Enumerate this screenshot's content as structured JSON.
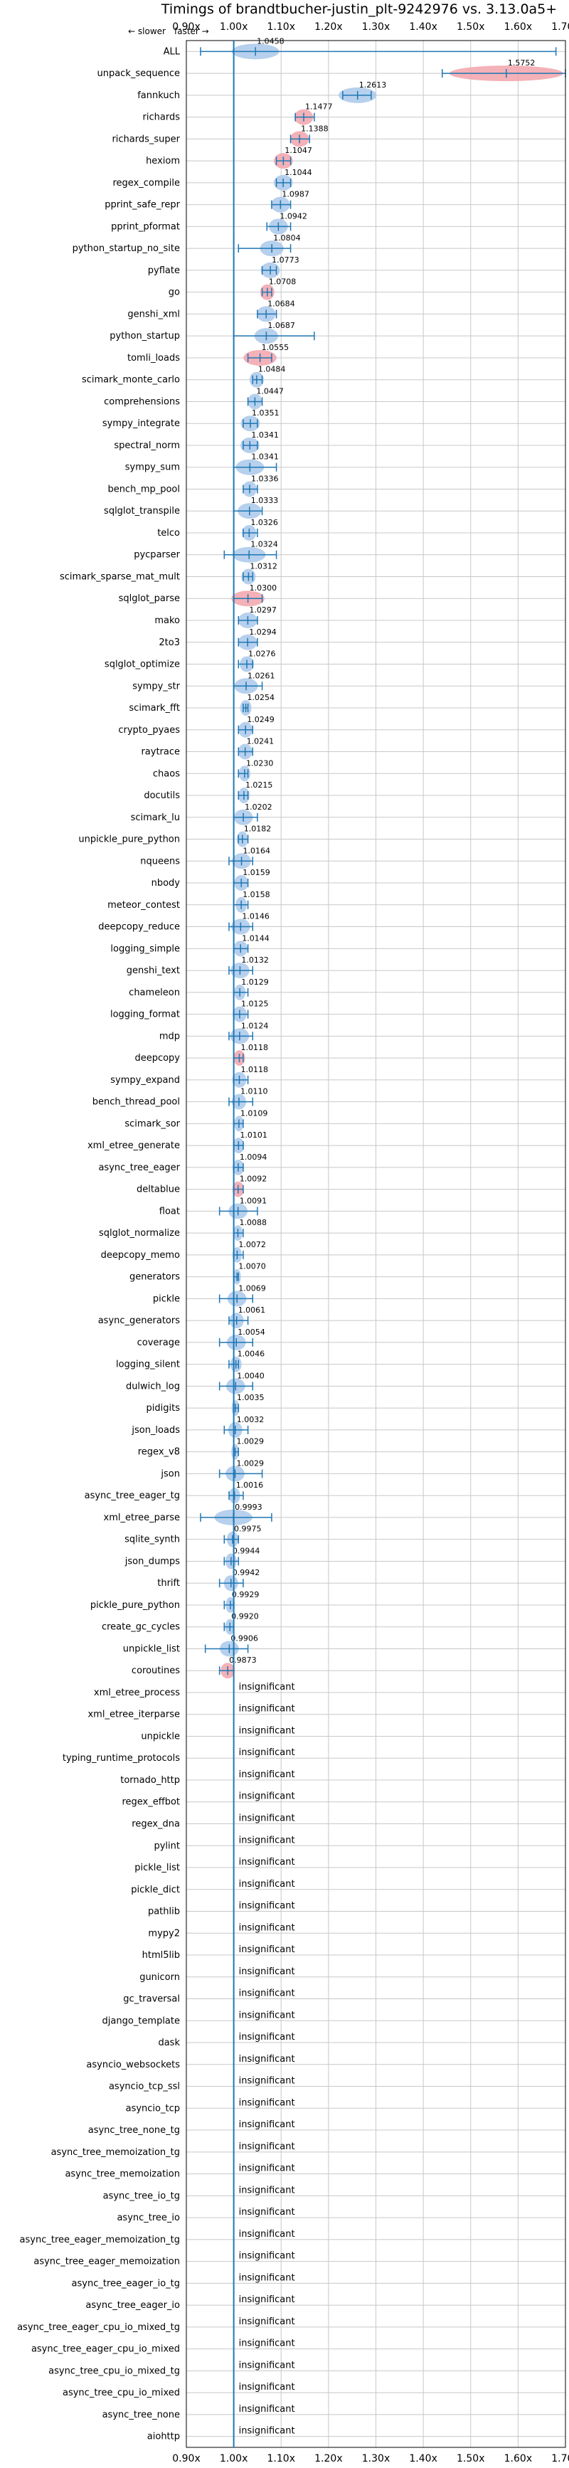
{
  "chart_data": {
    "type": "violin",
    "title": "Timings of brandtbucher-justin_plt-9242976 vs. 3.13.0a5+",
    "legend": {
      "slower": "← slower",
      "faster": "faster →"
    },
    "xlim": [
      0.9,
      1.7
    ],
    "xticks": [
      "0.90x",
      "1.00x",
      "1.10x",
      "1.20x",
      "1.30x",
      "1.40x",
      "1.50x",
      "1.60x",
      "1.70x"
    ],
    "grid": true,
    "colors": {
      "faster": "#a9c8ea",
      "slower": "#f2a3aa",
      "line": "#1f77b4",
      "grid": "#c8c8c8"
    },
    "rows": [
      {
        "name": "ALL",
        "mean": 1.0458,
        "label": "1.0458",
        "lo": 0.93,
        "hi": 1.68,
        "w": 0.05,
        "color": "faster"
      },
      {
        "name": "unpack_sequence",
        "mean": 1.5752,
        "label": "1.5752",
        "lo": 1.44,
        "hi": 1.7,
        "w": 0.12,
        "color": "slower"
      },
      {
        "name": "fannkuch",
        "mean": 1.2613,
        "label": "1.2613",
        "lo": 1.23,
        "hi": 1.29,
        "w": 0.04,
        "color": "faster"
      },
      {
        "name": "richards",
        "mean": 1.1477,
        "label": "1.1477",
        "lo": 1.13,
        "hi": 1.17,
        "w": 0.02,
        "color": "slower"
      },
      {
        "name": "richards_super",
        "mean": 1.1388,
        "label": "1.1388",
        "lo": 1.12,
        "hi": 1.16,
        "w": 0.02,
        "color": "slower"
      },
      {
        "name": "hexiom",
        "mean": 1.1047,
        "label": "1.1047",
        "lo": 1.09,
        "hi": 1.12,
        "w": 0.02,
        "color": "slower"
      },
      {
        "name": "regex_compile",
        "mean": 1.1044,
        "label": "1.1044",
        "lo": 1.09,
        "hi": 1.12,
        "w": 0.02,
        "color": "faster"
      },
      {
        "name": "pprint_safe_repr",
        "mean": 1.0987,
        "label": "1.0987",
        "lo": 1.08,
        "hi": 1.12,
        "w": 0.02,
        "color": "faster"
      },
      {
        "name": "pprint_pformat",
        "mean": 1.0942,
        "label": "1.0942",
        "lo": 1.07,
        "hi": 1.12,
        "w": 0.02,
        "color": "faster"
      },
      {
        "name": "python_startup_no_site",
        "mean": 1.0804,
        "label": "1.0804",
        "lo": 1.01,
        "hi": 1.12,
        "w": 0.025,
        "color": "faster"
      },
      {
        "name": "pyflate",
        "mean": 1.0773,
        "label": "1.0773",
        "lo": 1.06,
        "hi": 1.09,
        "w": 0.02,
        "color": "faster"
      },
      {
        "name": "go",
        "mean": 1.0708,
        "label": "1.0708",
        "lo": 1.06,
        "hi": 1.08,
        "w": 0.015,
        "color": "slower"
      },
      {
        "name": "genshi_xml",
        "mean": 1.0684,
        "label": "1.0684",
        "lo": 1.05,
        "hi": 1.09,
        "w": 0.02,
        "color": "faster"
      },
      {
        "name": "python_startup",
        "mean": 1.0687,
        "label": "1.0687",
        "lo": 1.0,
        "hi": 1.17,
        "w": 0.025,
        "color": "faster"
      },
      {
        "name": "tomli_loads",
        "mean": 1.0555,
        "label": "1.0555",
        "lo": 1.03,
        "hi": 1.08,
        "w": 0.035,
        "color": "slower"
      },
      {
        "name": "scimark_monte_carlo",
        "mean": 1.0484,
        "label": "1.0484",
        "lo": 1.04,
        "hi": 1.06,
        "w": 0.015,
        "color": "faster"
      },
      {
        "name": "comprehensions",
        "mean": 1.0447,
        "label": "1.0447",
        "lo": 1.03,
        "hi": 1.06,
        "w": 0.015,
        "color": "faster"
      },
      {
        "name": "sympy_integrate",
        "mean": 1.0351,
        "label": "1.0351",
        "lo": 1.02,
        "hi": 1.05,
        "w": 0.02,
        "color": "faster"
      },
      {
        "name": "spectral_norm",
        "mean": 1.0341,
        "label": "1.0341",
        "lo": 1.02,
        "hi": 1.05,
        "w": 0.02,
        "color": "faster"
      },
      {
        "name": "sympy_sum",
        "mean": 1.0341,
        "label": "1.0341",
        "lo": 1.0,
        "hi": 1.09,
        "w": 0.03,
        "color": "faster"
      },
      {
        "name": "bench_mp_pool",
        "mean": 1.0336,
        "label": "1.0336",
        "lo": 1.02,
        "hi": 1.05,
        "w": 0.015,
        "color": "faster"
      },
      {
        "name": "sqlglot_transpile",
        "mean": 1.0333,
        "label": "1.0333",
        "lo": 1.0,
        "hi": 1.06,
        "w": 0.025,
        "color": "faster"
      },
      {
        "name": "telco",
        "mean": 1.0326,
        "label": "1.0326",
        "lo": 1.02,
        "hi": 1.05,
        "w": 0.015,
        "color": "faster"
      },
      {
        "name": "pycparser",
        "mean": 1.0324,
        "label": "1.0324",
        "lo": 0.98,
        "hi": 1.09,
        "w": 0.035,
        "color": "faster"
      },
      {
        "name": "scimark_sparse_mat_mult",
        "mean": 1.0312,
        "label": "1.0312",
        "lo": 1.02,
        "hi": 1.04,
        "w": 0.015,
        "color": "faster"
      },
      {
        "name": "sqlglot_parse",
        "mean": 1.03,
        "label": "1.0300",
        "lo": 1.0,
        "hi": 1.06,
        "w": 0.035,
        "color": "slower"
      },
      {
        "name": "mako",
        "mean": 1.0297,
        "label": "1.0297",
        "lo": 1.01,
        "hi": 1.05,
        "w": 0.02,
        "color": "faster"
      },
      {
        "name": "2to3",
        "mean": 1.0294,
        "label": "1.0294",
        "lo": 1.01,
        "hi": 1.05,
        "w": 0.02,
        "color": "faster"
      },
      {
        "name": "sqlglot_optimize",
        "mean": 1.0276,
        "label": "1.0276",
        "lo": 1.01,
        "hi": 1.04,
        "w": 0.015,
        "color": "faster"
      },
      {
        "name": "sympy_str",
        "mean": 1.0261,
        "label": "1.0261",
        "lo": 1.0,
        "hi": 1.06,
        "w": 0.025,
        "color": "faster"
      },
      {
        "name": "scimark_fft",
        "mean": 1.0254,
        "label": "1.0254",
        "lo": 1.02,
        "hi": 1.03,
        "w": 0.012,
        "color": "faster"
      },
      {
        "name": "crypto_pyaes",
        "mean": 1.0249,
        "label": "1.0249",
        "lo": 1.01,
        "hi": 1.04,
        "w": 0.015,
        "color": "faster"
      },
      {
        "name": "raytrace",
        "mean": 1.0241,
        "label": "1.0241",
        "lo": 1.01,
        "hi": 1.04,
        "w": 0.015,
        "color": "faster"
      },
      {
        "name": "chaos",
        "mean": 1.023,
        "label": "1.0230",
        "lo": 1.01,
        "hi": 1.03,
        "w": 0.012,
        "color": "faster"
      },
      {
        "name": "docutils",
        "mean": 1.0215,
        "label": "1.0215",
        "lo": 1.01,
        "hi": 1.03,
        "w": 0.012,
        "color": "faster"
      },
      {
        "name": "scimark_lu",
        "mean": 1.0202,
        "label": "1.0202",
        "lo": 1.0,
        "hi": 1.05,
        "w": 0.02,
        "color": "faster"
      },
      {
        "name": "unpickle_pure_python",
        "mean": 1.0182,
        "label": "1.0182",
        "lo": 1.01,
        "hi": 1.03,
        "w": 0.012,
        "color": "faster"
      },
      {
        "name": "nqueens",
        "mean": 1.0164,
        "label": "1.0164",
        "lo": 0.99,
        "hi": 1.04,
        "w": 0.02,
        "color": "faster"
      },
      {
        "name": "nbody",
        "mean": 1.0159,
        "label": "1.0159",
        "lo": 1.0,
        "hi": 1.03,
        "w": 0.015,
        "color": "faster"
      },
      {
        "name": "meteor_contest",
        "mean": 1.0158,
        "label": "1.0158",
        "lo": 1.0,
        "hi": 1.03,
        "w": 0.012,
        "color": "faster"
      },
      {
        "name": "deepcopy_reduce",
        "mean": 1.0146,
        "label": "1.0146",
        "lo": 0.99,
        "hi": 1.04,
        "w": 0.02,
        "color": "faster"
      },
      {
        "name": "logging_simple",
        "mean": 1.0144,
        "label": "1.0144",
        "lo": 1.0,
        "hi": 1.03,
        "w": 0.015,
        "color": "faster"
      },
      {
        "name": "genshi_text",
        "mean": 1.0132,
        "label": "1.0132",
        "lo": 0.99,
        "hi": 1.04,
        "w": 0.02,
        "color": "faster"
      },
      {
        "name": "chameleon",
        "mean": 1.0129,
        "label": "1.0129",
        "lo": 1.0,
        "hi": 1.03,
        "w": 0.012,
        "color": "faster"
      },
      {
        "name": "logging_format",
        "mean": 1.0125,
        "label": "1.0125",
        "lo": 1.0,
        "hi": 1.03,
        "w": 0.015,
        "color": "faster"
      },
      {
        "name": "mdp",
        "mean": 1.0124,
        "label": "1.0124",
        "lo": 0.99,
        "hi": 1.04,
        "w": 0.02,
        "color": "faster"
      },
      {
        "name": "deepcopy",
        "mean": 1.0118,
        "label": "1.0118",
        "lo": 1.0,
        "hi": 1.02,
        "w": 0.012,
        "color": "slower"
      },
      {
        "name": "sympy_expand",
        "mean": 1.0118,
        "label": "1.0118",
        "lo": 1.0,
        "hi": 1.03,
        "w": 0.015,
        "color": "faster"
      },
      {
        "name": "bench_thread_pool",
        "mean": 1.011,
        "label": "1.0110",
        "lo": 0.99,
        "hi": 1.04,
        "w": 0.015,
        "color": "faster"
      },
      {
        "name": "scimark_sor",
        "mean": 1.0109,
        "label": "1.0109",
        "lo": 1.0,
        "hi": 1.02,
        "w": 0.01,
        "color": "faster"
      },
      {
        "name": "xml_etree_generate",
        "mean": 1.0101,
        "label": "1.0101",
        "lo": 1.0,
        "hi": 1.02,
        "w": 0.012,
        "color": "faster"
      },
      {
        "name": "async_tree_eager",
        "mean": 1.0094,
        "label": "1.0094",
        "lo": 1.0,
        "hi": 1.02,
        "w": 0.012,
        "color": "faster"
      },
      {
        "name": "deltablue",
        "mean": 1.0092,
        "label": "1.0092",
        "lo": 1.0,
        "hi": 1.02,
        "w": 0.012,
        "color": "slower"
      },
      {
        "name": "float",
        "mean": 1.0091,
        "label": "1.0091",
        "lo": 0.97,
        "hi": 1.05,
        "w": 0.02,
        "color": "faster"
      },
      {
        "name": "sqlglot_normalize",
        "mean": 1.0088,
        "label": "1.0088",
        "lo": 1.0,
        "hi": 1.02,
        "w": 0.01,
        "color": "faster"
      },
      {
        "name": "deepcopy_memo",
        "mean": 1.0072,
        "label": "1.0072",
        "lo": 1.0,
        "hi": 1.02,
        "w": 0.01,
        "color": "faster"
      },
      {
        "name": "generators",
        "mean": 1.007,
        "label": "1.0070",
        "lo": 1.0,
        "hi": 1.01,
        "w": 0.008,
        "color": "faster"
      },
      {
        "name": "pickle",
        "mean": 1.0069,
        "label": "1.0069",
        "lo": 0.97,
        "hi": 1.04,
        "w": 0.02,
        "color": "faster"
      },
      {
        "name": "async_generators",
        "mean": 1.0061,
        "label": "1.0061",
        "lo": 0.99,
        "hi": 1.03,
        "w": 0.015,
        "color": "faster"
      },
      {
        "name": "coverage",
        "mean": 1.0054,
        "label": "1.0054",
        "lo": 0.97,
        "hi": 1.04,
        "w": 0.02,
        "color": "faster"
      },
      {
        "name": "logging_silent",
        "mean": 1.0046,
        "label": "1.0046",
        "lo": 0.99,
        "hi": 1.01,
        "w": 0.012,
        "color": "faster"
      },
      {
        "name": "dulwich_log",
        "mean": 1.004,
        "label": "1.0040",
        "lo": 0.97,
        "hi": 1.04,
        "w": 0.02,
        "color": "faster"
      },
      {
        "name": "pidigits",
        "mean": 1.0035,
        "label": "1.0035",
        "lo": 1.0,
        "hi": 1.01,
        "w": 0.008,
        "color": "faster"
      },
      {
        "name": "json_loads",
        "mean": 1.0032,
        "label": "1.0032",
        "lo": 0.98,
        "hi": 1.03,
        "w": 0.015,
        "color": "faster"
      },
      {
        "name": "regex_v8",
        "mean": 1.0029,
        "label": "1.0029",
        "lo": 1.0,
        "hi": 1.01,
        "w": 0.008,
        "color": "faster"
      },
      {
        "name": "json",
        "mean": 1.0029,
        "label": "1.0029",
        "lo": 0.97,
        "hi": 1.06,
        "w": 0.02,
        "color": "faster"
      },
      {
        "name": "async_tree_eager_tg",
        "mean": 1.0016,
        "label": "1.0016",
        "lo": 0.99,
        "hi": 1.02,
        "w": 0.012,
        "color": "faster"
      },
      {
        "name": "xml_etree_parse",
        "mean": 0.9993,
        "label": "0.9993",
        "lo": 0.93,
        "hi": 1.08,
        "w": 0.04,
        "color": "faster"
      },
      {
        "name": "sqlite_synth",
        "mean": 0.9975,
        "label": "0.9975",
        "lo": 0.98,
        "hi": 1.01,
        "w": 0.012,
        "color": "faster"
      },
      {
        "name": "json_dumps",
        "mean": 0.9944,
        "label": "0.9944",
        "lo": 0.98,
        "hi": 1.01,
        "w": 0.012,
        "color": "faster"
      },
      {
        "name": "thrift",
        "mean": 0.9942,
        "label": "0.9942",
        "lo": 0.97,
        "hi": 1.02,
        "w": 0.015,
        "color": "faster"
      },
      {
        "name": "pickle_pure_python",
        "mean": 0.9929,
        "label": "0.9929",
        "lo": 0.98,
        "hi": 1.0,
        "w": 0.01,
        "color": "faster"
      },
      {
        "name": "create_gc_cycles",
        "mean": 0.992,
        "label": "0.9920",
        "lo": 0.98,
        "hi": 1.0,
        "w": 0.01,
        "color": "faster"
      },
      {
        "name": "unpickle_list",
        "mean": 0.9906,
        "label": "0.9906",
        "lo": 0.94,
        "hi": 1.03,
        "w": 0.02,
        "color": "faster"
      },
      {
        "name": "coroutines",
        "mean": 0.9873,
        "label": "0.9873",
        "lo": 0.97,
        "hi": 1.0,
        "w": 0.015,
        "color": "slower"
      },
      {
        "name": "xml_etree_process",
        "label": "insignificant"
      },
      {
        "name": "xml_etree_iterparse",
        "label": "insignificant"
      },
      {
        "name": "unpickle",
        "label": "insignificant"
      },
      {
        "name": "typing_runtime_protocols",
        "label": "insignificant"
      },
      {
        "name": "tornado_http",
        "label": "insignificant"
      },
      {
        "name": "regex_effbot",
        "label": "insignificant"
      },
      {
        "name": "regex_dna",
        "label": "insignificant"
      },
      {
        "name": "pylint",
        "label": "insignificant"
      },
      {
        "name": "pickle_list",
        "label": "insignificant"
      },
      {
        "name": "pickle_dict",
        "label": "insignificant"
      },
      {
        "name": "pathlib",
        "label": "insignificant"
      },
      {
        "name": "mypy2",
        "label": "insignificant"
      },
      {
        "name": "html5lib",
        "label": "insignificant"
      },
      {
        "name": "gunicorn",
        "label": "insignificant"
      },
      {
        "name": "gc_traversal",
        "label": "insignificant"
      },
      {
        "name": "django_template",
        "label": "insignificant"
      },
      {
        "name": "dask",
        "label": "insignificant"
      },
      {
        "name": "asyncio_websockets",
        "label": "insignificant"
      },
      {
        "name": "asyncio_tcp_ssl",
        "label": "insignificant"
      },
      {
        "name": "asyncio_tcp",
        "label": "insignificant"
      },
      {
        "name": "async_tree_none_tg",
        "label": "insignificant"
      },
      {
        "name": "async_tree_memoization_tg",
        "label": "insignificant"
      },
      {
        "name": "async_tree_memoization",
        "label": "insignificant"
      },
      {
        "name": "async_tree_io_tg",
        "label": "insignificant"
      },
      {
        "name": "async_tree_io",
        "label": "insignificant"
      },
      {
        "name": "async_tree_eager_memoization_tg",
        "label": "insignificant"
      },
      {
        "name": "async_tree_eager_memoization",
        "label": "insignificant"
      },
      {
        "name": "async_tree_eager_io_tg",
        "label": "insignificant"
      },
      {
        "name": "async_tree_eager_io",
        "label": "insignificant"
      },
      {
        "name": "async_tree_eager_cpu_io_mixed_tg",
        "label": "insignificant"
      },
      {
        "name": "async_tree_eager_cpu_io_mixed",
        "label": "insignificant"
      },
      {
        "name": "async_tree_cpu_io_mixed_tg",
        "label": "insignificant"
      },
      {
        "name": "async_tree_cpu_io_mixed",
        "label": "insignificant"
      },
      {
        "name": "async_tree_none",
        "label": "insignificant"
      },
      {
        "name": "aiohttp",
        "label": "insignificant"
      }
    ]
  }
}
